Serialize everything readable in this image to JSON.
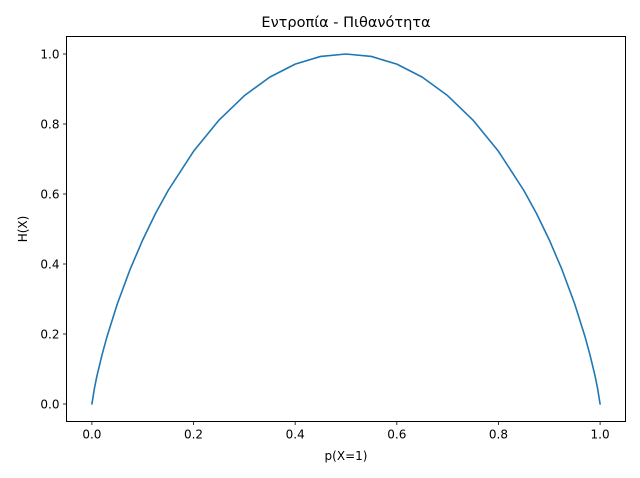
{
  "chart_data": {
    "type": "line",
    "title": "Εντροπία - Πιθανότητα",
    "xlabel": "p(X=1)",
    "ylabel": "H(X)",
    "xlim": [
      -0.05,
      1.05
    ],
    "ylim": [
      -0.05,
      1.05
    ],
    "xticks": [
      "0.0",
      "0.2",
      "0.4",
      "0.6",
      "0.8",
      "1.0"
    ],
    "yticks": [
      "0.0",
      "0.2",
      "0.4",
      "0.6",
      "0.8",
      "1.0"
    ],
    "grid": false,
    "legend": "none",
    "series": [
      {
        "color": "#1f77b4",
        "x": [
          0.0,
          0.005,
          0.01,
          0.02,
          0.03,
          0.05,
          0.075,
          0.1,
          0.125,
          0.15,
          0.2,
          0.25,
          0.3,
          0.35,
          0.4,
          0.45,
          0.5,
          0.55,
          0.6,
          0.65,
          0.7,
          0.75,
          0.8,
          0.85,
          0.875,
          0.9,
          0.925,
          0.95,
          0.97,
          0.98,
          0.99,
          0.995,
          1.0
        ],
        "y": [
          0.0,
          0.045,
          0.081,
          0.141,
          0.194,
          0.286,
          0.384,
          0.469,
          0.544,
          0.61,
          0.722,
          0.811,
          0.881,
          0.934,
          0.971,
          0.993,
          1.0,
          0.993,
          0.971,
          0.934,
          0.881,
          0.811,
          0.722,
          0.61,
          0.544,
          0.469,
          0.384,
          0.286,
          0.194,
          0.141,
          0.081,
          0.045,
          0.0
        ]
      }
    ]
  }
}
